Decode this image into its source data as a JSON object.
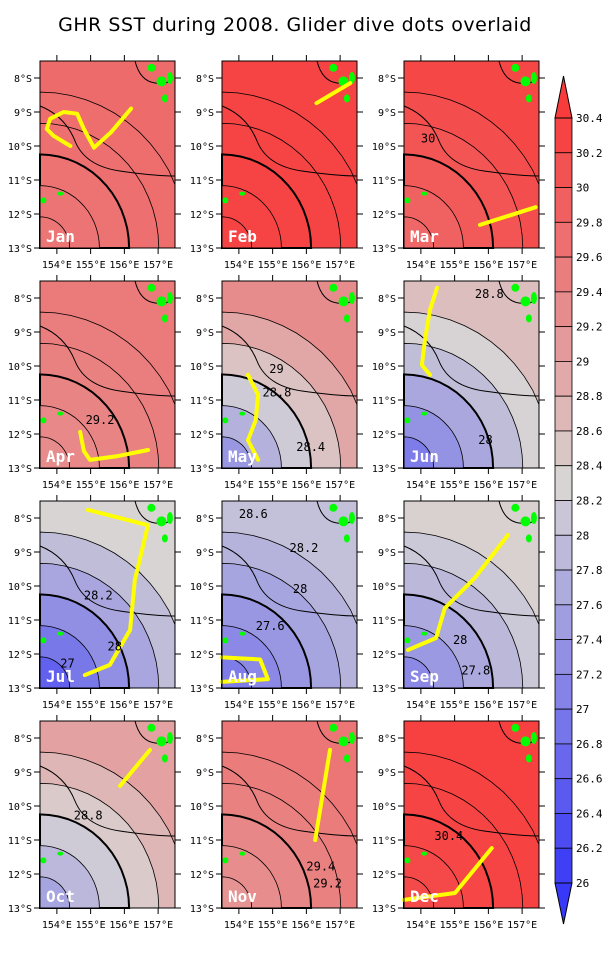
{
  "title": "GHR SST during 2008. Glider dive dots overlaid",
  "chart_data": {
    "type": "heatmap",
    "title": "GHR SST during 2008. Glider dive dots overlaid",
    "lon_range": [
      153.5,
      157.5
    ],
    "lat_range": [
      -7.5,
      -13
    ],
    "lon_ticks": [
      154,
      155,
      156,
      157
    ],
    "lon_tick_labels": [
      "154°E",
      "155°E",
      "156°E",
      "157°E"
    ],
    "lat_ticks": [
      -8,
      -9,
      -10,
      -11,
      -12,
      -13
    ],
    "lat_tick_labels": [
      "8°S",
      "9°S",
      "10°S",
      "11°S",
      "12°S",
      "13°S"
    ],
    "colorbar": {
      "levels": [
        26,
        26.2,
        26.4,
        26.6,
        26.8,
        27,
        27.2,
        27.4,
        27.6,
        27.8,
        28,
        28.2,
        28.4,
        28.6,
        28.8,
        29,
        29.2,
        29.4,
        29.6,
        29.8,
        30,
        30.2,
        30.4
      ],
      "labels": [
        "26",
        "26.2",
        "26.4",
        "26.6",
        "26.8",
        "27",
        "27.2",
        "27.4",
        "27.6",
        "27.8",
        "28",
        "28.2",
        "28.4",
        "28.6",
        "28.8",
        "29",
        "29.2",
        "29.4",
        "29.6",
        "29.8",
        "30",
        "30.2",
        "30.4"
      ],
      "low_color": "#3838f8",
      "mid_color": "#d8d4d4",
      "high_color": "#f83c3c"
    },
    "glider_color": "#ffff00",
    "land_color": "#00ff00",
    "panels": [
      {
        "month": "Jan",
        "sst_main": 29.75,
        "sst_lowleft": 29.6,
        "contour_labels": [],
        "track": [
          [
            154.4,
            -10.0
          ],
          [
            153.9,
            -9.7
          ],
          [
            153.7,
            -9.5
          ],
          [
            153.8,
            -9.2
          ],
          [
            154.2,
            -9.0
          ],
          [
            154.6,
            -9.05
          ],
          [
            154.8,
            -9.5
          ],
          [
            155.1,
            -10.05
          ],
          [
            155.6,
            -9.6
          ],
          [
            156.2,
            -8.9
          ]
        ]
      },
      {
        "month": "Feb",
        "sst_main": 30.3,
        "sst_lowleft": 30.3,
        "contour_labels": [],
        "track": [
          [
            156.3,
            -8.74
          ],
          [
            157.3,
            -8.15
          ]
        ]
      },
      {
        "month": "Mar",
        "sst_main": 30.25,
        "sst_lowleft": 29.8,
        "contour_labels": [
          {
            "text": "30",
            "lon": 154.0,
            "lat": -9.9
          }
        ],
        "track": [
          [
            155.75,
            -12.32
          ],
          [
            157.4,
            -11.8
          ]
        ]
      },
      {
        "month": "Apr",
        "sst_main": 29.55,
        "sst_lowleft": 29.3,
        "contour_labels": [
          {
            "text": "29.2",
            "lon": 154.85,
            "lat": -11.7
          }
        ],
        "track": [
          [
            154.69,
            -11.94
          ],
          [
            154.8,
            -12.5
          ],
          [
            154.98,
            -12.76
          ],
          [
            155.8,
            -12.65
          ],
          [
            156.7,
            -12.47
          ]
        ]
      },
      {
        "month": "May",
        "sst_main": 29.3,
        "sst_lowleft": 27.4,
        "contour_labels": [
          {
            "text": "29",
            "lon": 154.9,
            "lat": -10.2
          },
          {
            "text": "28.8",
            "lon": 154.7,
            "lat": -10.9
          },
          {
            "text": "28.4",
            "lon": 155.7,
            "lat": -12.5
          }
        ],
        "track": [
          [
            154.27,
            -10.26
          ],
          [
            154.57,
            -10.85
          ],
          [
            154.5,
            -11.59
          ],
          [
            154.27,
            -12.18
          ],
          [
            154.57,
            -12.76
          ]
        ]
      },
      {
        "month": "Jun",
        "sst_main": 28.6,
        "sst_lowleft": 27.0,
        "contour_labels": [
          {
            "text": "28.8",
            "lon": 155.6,
            "lat": -8.0
          },
          {
            "text": "28",
            "lon": 155.7,
            "lat": -12.3
          }
        ],
        "track": [
          [
            154.48,
            -7.7
          ],
          [
            154.27,
            -8.35
          ],
          [
            154.12,
            -9.24
          ],
          [
            154.03,
            -9.97
          ],
          [
            154.27,
            -10.26
          ]
        ]
      },
      {
        "month": "Jul",
        "sst_main": 28.3,
        "sst_lowleft": 26.6,
        "contour_labels": [
          {
            "text": "28.2",
            "lon": 154.8,
            "lat": -10.4
          },
          {
            "text": "28",
            "lon": 155.5,
            "lat": -11.9
          },
          {
            "text": "27",
            "lon": 154.1,
            "lat": -12.4
          }
        ],
        "track": [
          [
            154.92,
            -7.76
          ],
          [
            156.7,
            -8.21
          ],
          [
            156.31,
            -9.82
          ],
          [
            156.17,
            -11.29
          ],
          [
            155.57,
            -12.32
          ],
          [
            154.83,
            -12.62
          ]
        ]
      },
      {
        "month": "Aug",
        "sst_main": 28.0,
        "sst_lowleft": 27.0,
        "contour_labels": [
          {
            "text": "28.6",
            "lon": 154.0,
            "lat": -8.0
          },
          {
            "text": "28.2",
            "lon": 155.5,
            "lat": -9.0
          },
          {
            "text": "28",
            "lon": 155.6,
            "lat": -10.2
          },
          {
            "text": "27.6",
            "lon": 154.5,
            "lat": -11.3
          }
        ],
        "track": [
          [
            153.5,
            -12.1
          ],
          [
            154.63,
            -12.16
          ],
          [
            154.86,
            -12.74
          ],
          [
            153.5,
            -12.82
          ]
        ]
      },
      {
        "month": "Sep",
        "sst_main": 28.35,
        "sst_lowleft": 27.2,
        "contour_labels": [
          {
            "text": "28",
            "lon": 154.95,
            "lat": -11.7
          },
          {
            "text": "27.8",
            "lon": 155.2,
            "lat": -12.6
          }
        ],
        "track": [
          [
            156.58,
            -8.5
          ],
          [
            155.6,
            -9.76
          ],
          [
            154.71,
            -10.65
          ],
          [
            154.45,
            -11.53
          ],
          [
            153.62,
            -11.88
          ]
        ]
      },
      {
        "month": "Oct",
        "sst_main": 29.0,
        "sst_lowleft": 27.6,
        "contour_labels": [
          {
            "text": "28.8",
            "lon": 154.5,
            "lat": -10.4
          }
        ],
        "track": [
          [
            155.87,
            -9.41
          ],
          [
            156.76,
            -8.35
          ]
        ]
      },
      {
        "month": "Nov",
        "sst_main": 29.6,
        "sst_lowleft": 29.2,
        "contour_labels": [
          {
            "text": "29.4",
            "lon": 156.0,
            "lat": -11.9
          },
          {
            "text": "29.2",
            "lon": 156.2,
            "lat": -12.4
          }
        ],
        "track": [
          [
            156.7,
            -8.35
          ],
          [
            156.26,
            -11.0
          ]
        ]
      },
      {
        "month": "Dec",
        "sst_main": 30.35,
        "sst_lowleft": 30.2,
        "contour_labels": [
          {
            "text": "30.4",
            "lon": 154.4,
            "lat": -11.0
          }
        ],
        "track": [
          [
            153.5,
            -12.76
          ],
          [
            155.01,
            -12.56
          ],
          [
            156.1,
            -11.24
          ]
        ]
      }
    ]
  }
}
